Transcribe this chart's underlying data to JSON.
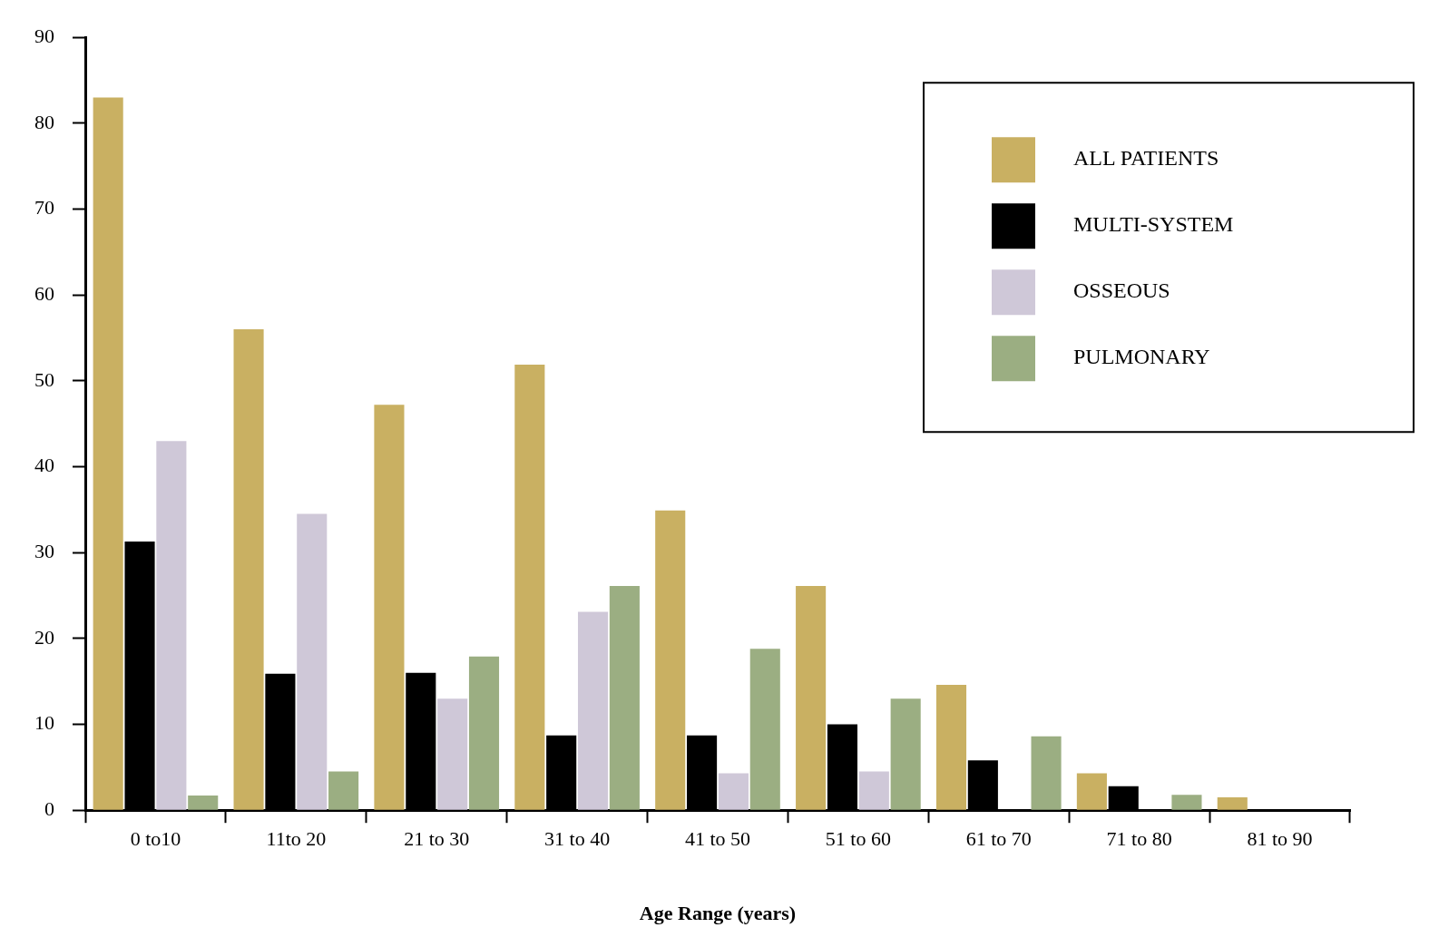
{
  "chart_data": {
    "type": "bar",
    "xlabel": "Age Range (years)",
    "categories": [
      "0 to10",
      "11to 20",
      "21 to 30",
      "31 to 40",
      "41 to 50",
      "51 to 60",
      "61 to 70",
      "71 to 80",
      "81 to 90"
    ],
    "series": [
      {
        "name": "ALL PATIENTS",
        "color": "#c9b062",
        "values": [
          83,
          56,
          47.2,
          51.9,
          34.9,
          26.1,
          14.6,
          4.3,
          1.5
        ]
      },
      {
        "name": "MULTI-SYSTEM",
        "color": "#000000",
        "values": [
          31.3,
          15.9,
          16,
          8.7,
          8.7,
          10,
          5.8,
          2.8,
          0
        ]
      },
      {
        "name": "OSSEOUS",
        "color": "#cfc8d8",
        "values": [
          43,
          34.5,
          13,
          23.1,
          4.3,
          4.5,
          0,
          0,
          0
        ]
      },
      {
        "name": "PULMONARY",
        "color": "#9bae82",
        "values": [
          1.7,
          4.5,
          17.9,
          26.1,
          18.8,
          13,
          8.6,
          1.8,
          0
        ]
      }
    ],
    "ylim": [
      0,
      90
    ],
    "yticks": [
      0,
      10,
      20,
      30,
      40,
      50,
      60,
      70,
      80,
      90
    ],
    "grid": false,
    "legend": "top right"
  }
}
